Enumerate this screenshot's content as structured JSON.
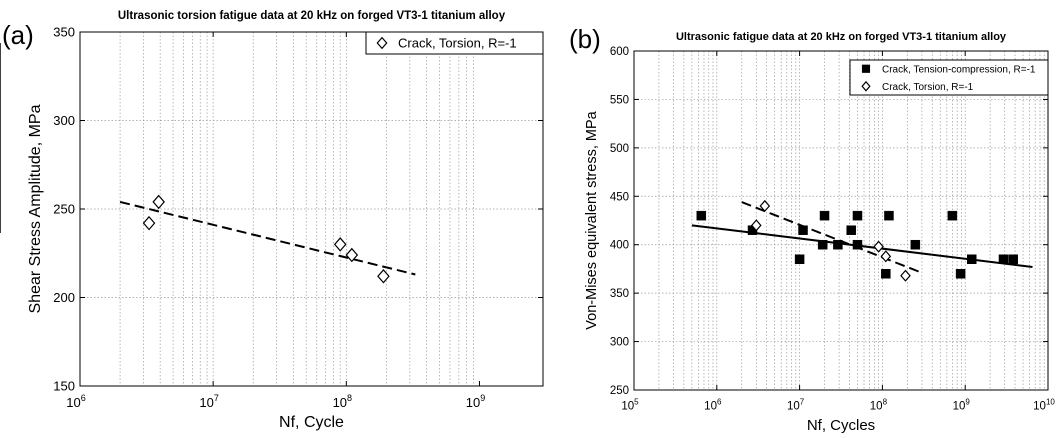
{
  "panels": {
    "a": {
      "letter": "(a)"
    },
    "b": {
      "letter": "(b)"
    }
  },
  "chart_data": [
    {
      "type": "scatter",
      "title": "Ultrasonic torsion fatigue data at 20 kHz on forged VT3-1 titanium alloy",
      "xlabel": "Nf, Cycle",
      "ylabel": "Shear Stress Amplitude, MPa",
      "xscale": "log",
      "xlim": [
        1000000,
        3000000000
      ],
      "ylim": [
        150,
        350
      ],
      "yticks": [
        150,
        200,
        250,
        300,
        350
      ],
      "xticks": [
        1000000,
        10000000,
        100000000,
        1000000000
      ],
      "xtick_labels": [
        {
          "base": "10",
          "exp": "6"
        },
        {
          "base": "10",
          "exp": "7"
        },
        {
          "base": "10",
          "exp": "8"
        },
        {
          "base": "10",
          "exp": "9"
        }
      ],
      "grid": true,
      "legend_position": "top-right",
      "series": [
        {
          "name": "Crack, Torsion, R=-1",
          "marker": "diamond-open",
          "color": "#000000",
          "points": [
            [
              3300000,
              242
            ],
            [
              3900000,
              254
            ],
            [
              90000000,
              230
            ],
            [
              110000000,
              224
            ],
            [
              190000000,
              212
            ]
          ]
        }
      ],
      "fit_lines": [
        {
          "style": "dashed",
          "from": [
            2000000,
            254
          ],
          "to": [
            330000000,
            213
          ]
        }
      ]
    },
    {
      "type": "scatter",
      "title": "Ultrasonic fatigue data at 20 kHz on forged VT3-1 titanium alloy",
      "xlabel": "Nf, Cycles",
      "ylabel": "Von-Mises equivalent stress, MPa",
      "xscale": "log",
      "xlim": [
        100000,
        10000000000
      ],
      "ylim": [
        250,
        600
      ],
      "yticks": [
        250,
        300,
        350,
        400,
        450,
        500,
        550,
        600
      ],
      "xticks": [
        100000,
        1000000,
        10000000,
        100000000,
        1000000000,
        10000000000
      ],
      "xtick_labels": [
        {
          "base": "10",
          "exp": "5"
        },
        {
          "base": "10",
          "exp": "6"
        },
        {
          "base": "10",
          "exp": "7"
        },
        {
          "base": "10",
          "exp": "8"
        },
        {
          "base": "10",
          "exp": "9"
        },
        {
          "base": "10",
          "exp": "10"
        }
      ],
      "grid": true,
      "legend_position": "top-right",
      "series": [
        {
          "name": "Crack, Tension-compression, R=-1",
          "marker": "square-filled",
          "color": "#000000",
          "points": [
            [
              650000,
              430
            ],
            [
              2700000,
              415
            ],
            [
              10000000,
              385
            ],
            [
              11000000,
              415
            ],
            [
              19000000,
              400
            ],
            [
              20000000,
              430
            ],
            [
              29000000,
              400
            ],
            [
              42000000,
              415
            ],
            [
              50000000,
              400
            ],
            [
              50000000,
              430
            ],
            [
              110000000,
              370
            ],
            [
              120000000,
              430
            ],
            [
              250000000,
              400
            ],
            [
              700000000,
              430
            ],
            [
              880000000,
              370
            ],
            [
              1200000000,
              385
            ],
            [
              2900000000,
              385
            ],
            [
              3800000000,
              385
            ]
          ]
        },
        {
          "name": "Crack, Torsion, R=-1",
          "marker": "diamond-open",
          "color": "#000000",
          "points": [
            [
              3000000,
              420
            ],
            [
              3800000,
              440
            ],
            [
              90000000,
              398
            ],
            [
              110000000,
              388
            ],
            [
              190000000,
              368
            ]
          ]
        }
      ],
      "fit_lines": [
        {
          "style": "solid",
          "from": [
            500000,
            420
          ],
          "to": [
            6500000000,
            377
          ]
        },
        {
          "style": "dashed",
          "from": [
            2000000,
            444
          ],
          "to": [
            300000000,
            371
          ]
        }
      ]
    }
  ]
}
